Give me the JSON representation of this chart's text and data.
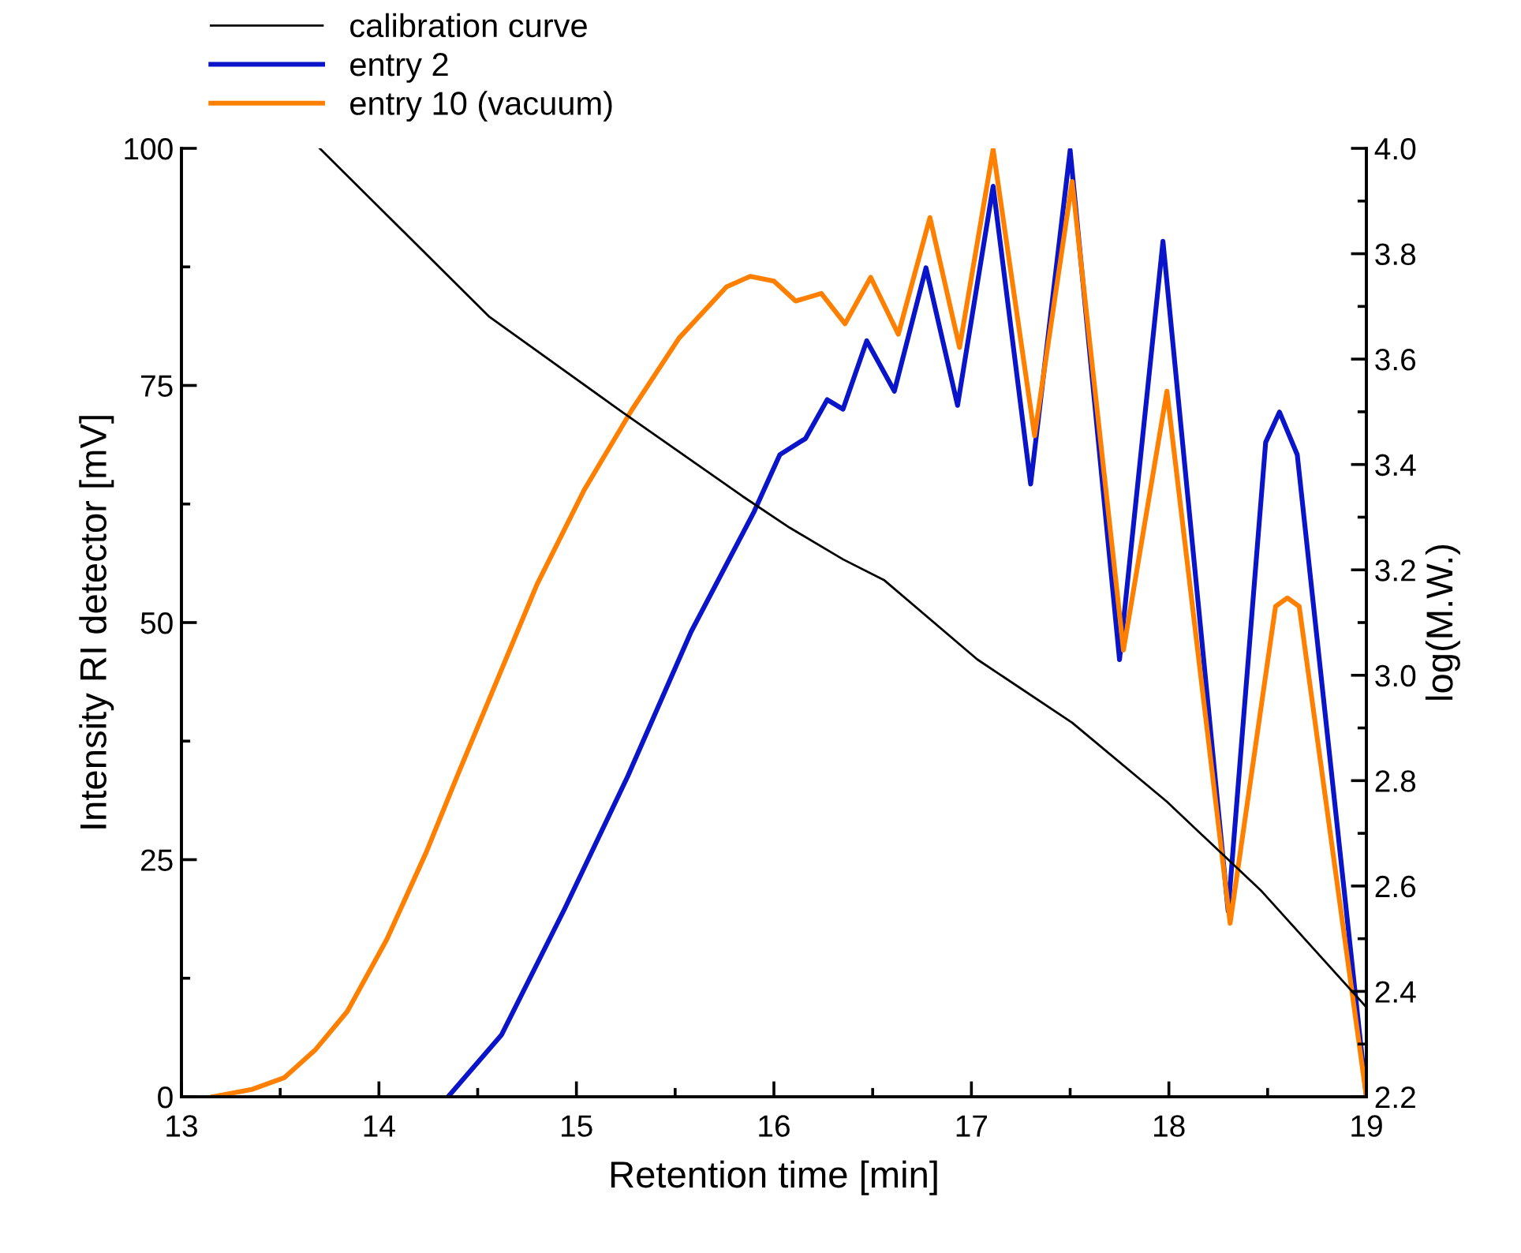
{
  "chart_data": {
    "type": "line",
    "xlabel": "Retention time [min]",
    "ylabel": "Intensity RI detector [mV]",
    "y2label": "log(M.W.)",
    "xlim": [
      13,
      19
    ],
    "xticks": [
      13,
      14,
      15,
      16,
      17,
      18,
      19
    ],
    "ylim": [
      0,
      100
    ],
    "yticks": [
      0,
      25,
      50,
      75,
      100
    ],
    "y2lim": [
      2.2,
      4.0
    ],
    "y2ticks": [
      2.2,
      2.4,
      2.6,
      2.8,
      {
        "value": 3,
        "label": "3.0"
      },
      3.2,
      3.4,
      3.6,
      3.8,
      {
        "value": 4,
        "label": "4.0"
      }
    ],
    "legend": "top left",
    "grid": false,
    "line_style": "solid",
    "marker": "none",
    "series": [
      {
        "name": "calibration curve",
        "color": "#000000",
        "axis": "y2",
        "x": [
          13.7,
          14.56,
          15.23,
          15.84,
          16.08,
          16.35,
          16.56,
          17.03,
          17.51,
          17.99,
          18.47,
          19.0
        ],
        "values": [
          4.0,
          3.68,
          3.5,
          3.34,
          3.28,
          3.22,
          3.18,
          3.03,
          2.91,
          2.76,
          2.59,
          2.37
        ]
      },
      {
        "name": "entry 2",
        "color": "#0a14c8",
        "x": [
          14.35,
          14.62,
          14.94,
          15.26,
          15.58,
          15.9,
          16.03,
          16.16,
          16.27,
          16.35,
          16.47,
          16.61,
          16.77,
          16.93,
          17.11,
          17.3,
          17.5,
          17.75,
          17.97,
          18.3,
          18.49,
          18.56,
          18.65,
          19.0
        ],
        "values": [
          0,
          6.5,
          19.8,
          33.8,
          49,
          61.7,
          67.7,
          69.4,
          73.5,
          72.5,
          79.7,
          74.4,
          87.4,
          72.9,
          96,
          64.6,
          99.8,
          46.1,
          90.2,
          19.6,
          69,
          72.2,
          67.7,
          0
        ]
      },
      {
        "name": "entry 10 (vacuum)",
        "color": "#ff8000",
        "x": [
          13.16,
          13.36,
          13.52,
          13.68,
          13.84,
          14.04,
          14.24,
          14.4,
          14.6,
          14.8,
          15.04,
          15.28,
          15.52,
          15.76,
          15.88,
          16.0,
          16.11,
          16.24,
          16.36,
          16.49,
          16.63,
          16.79,
          16.94,
          17.11,
          17.32,
          17.51,
          17.77,
          17.99,
          18.31,
          18.54,
          18.6,
          18.66,
          19.0
        ],
        "values": [
          0,
          0.8,
          2,
          5,
          9,
          16.6,
          25.8,
          34,
          44,
          54,
          64,
          72.4,
          80,
          85.4,
          86.5,
          86,
          83.9,
          84.7,
          81.5,
          86.4,
          80.4,
          92.7,
          79,
          99.9,
          69.7,
          96.5,
          47.1,
          74.4,
          18.3,
          51.7,
          52.6,
          51.7,
          0
        ]
      }
    ]
  }
}
